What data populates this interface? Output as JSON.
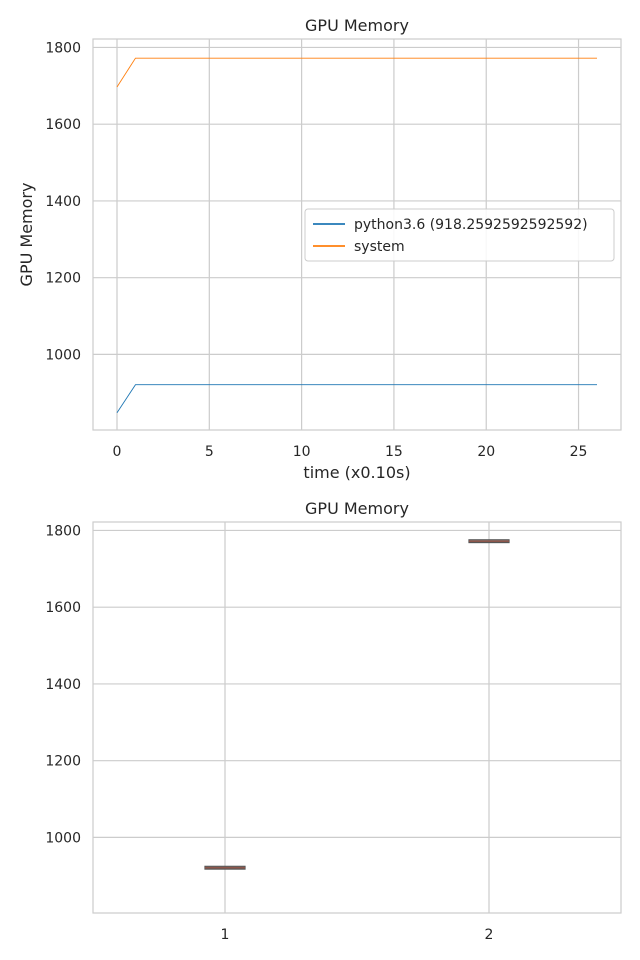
{
  "chart_data": [
    {
      "type": "line",
      "title": "GPU Memory",
      "xlabel": "time (x0.10s)",
      "ylabel": "GPU Memory",
      "xlim": [
        -1.3,
        27.3
      ],
      "ylim": [
        803,
        1822
      ],
      "xticks": [
        0,
        5,
        10,
        15,
        20,
        25
      ],
      "yticks": [
        1000,
        1200,
        1400,
        1600,
        1800
      ],
      "grid": true,
      "legend_position": "center-right",
      "series": [
        {
          "name": "python3.6 (918.2592592592592)",
          "color": "#1f77b4",
          "x": [
            0,
            1,
            2,
            3,
            4,
            5,
            6,
            7,
            8,
            9,
            10,
            11,
            12,
            13,
            14,
            15,
            16,
            17,
            18,
            19,
            20,
            21,
            22,
            23,
            24,
            25,
            26
          ],
          "y": [
            848,
            921,
            921,
            921,
            921,
            921,
            921,
            921,
            921,
            921,
            921,
            921,
            921,
            921,
            921,
            921,
            921,
            921,
            921,
            921,
            921,
            921,
            921,
            921,
            921,
            921,
            921
          ]
        },
        {
          "name": "system",
          "color": "#ff7f0e",
          "x": [
            0,
            1,
            2,
            3,
            4,
            5,
            6,
            7,
            8,
            9,
            10,
            11,
            12,
            13,
            14,
            15,
            16,
            17,
            18,
            19,
            20,
            21,
            22,
            23,
            24,
            25,
            26
          ],
          "y": [
            1697,
            1772,
            1772,
            1772,
            1772,
            1772,
            1772,
            1772,
            1772,
            1772,
            1772,
            1772,
            1772,
            1772,
            1772,
            1772,
            1772,
            1772,
            1772,
            1772,
            1772,
            1772,
            1772,
            1772,
            1772,
            1772,
            1772
          ]
        }
      ]
    },
    {
      "type": "box",
      "title": "GPU Memory",
      "categories": [
        "1",
        "2"
      ],
      "ylim": [
        803,
        1822
      ],
      "yticks": [
        1000,
        1200,
        1400,
        1600,
        1800
      ],
      "grid": true,
      "boxes": [
        {
          "category": "1",
          "median": 921,
          "q1": 920,
          "q3": 922,
          "whisker_low": 920,
          "whisker_high": 922
        },
        {
          "category": "2",
          "median": 1772,
          "q1": 1771,
          "q3": 1773,
          "whisker_low": 1771,
          "whisker_high": 1773
        }
      ],
      "box_color": "#8c564b"
    }
  ]
}
